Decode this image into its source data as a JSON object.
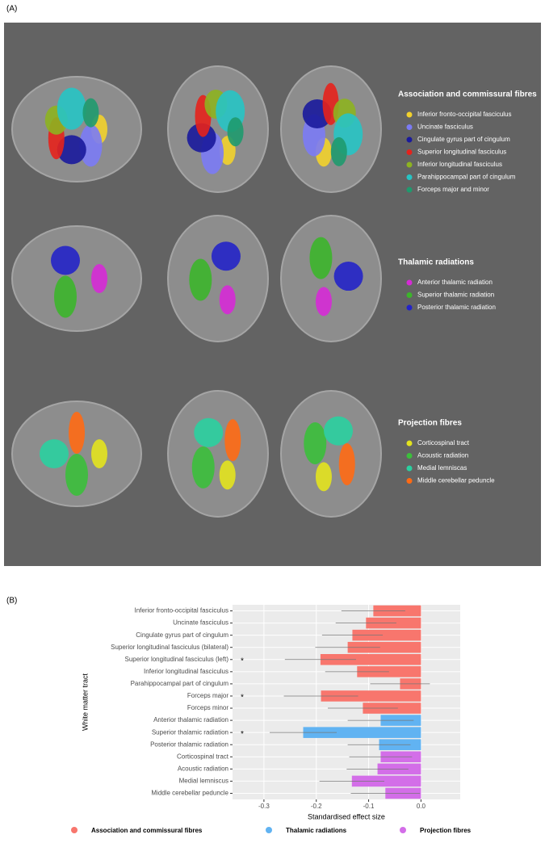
{
  "panel_a": {
    "label": "(A)",
    "groups": [
      {
        "title": "Association and commissural fibres",
        "items": [
          {
            "name": "Inferior fronto-occipital fasciculus",
            "color": "#f2d12c"
          },
          {
            "name": "Uncinate fasciculus",
            "color": "#7b7bf5"
          },
          {
            "name": "Cingulate gyrus part of cingulum",
            "color": "#1a1a9c"
          },
          {
            "name": "Superior longitudinal fasciculus",
            "color": "#e5221c"
          },
          {
            "name": "Inferior longitudinal fasciculus",
            "color": "#8db320"
          },
          {
            "name": "Parahippocampal part of cingulum",
            "color": "#27c4c4"
          },
          {
            "name": "Forceps major and minor",
            "color": "#1f9a6e"
          }
        ]
      },
      {
        "title": "Thalamic radiations",
        "items": [
          {
            "name": "Anterior thalamic radiation",
            "color": "#d62ad6"
          },
          {
            "name": "Superior thalamic radiation",
            "color": "#3cb52b"
          },
          {
            "name": "Posterior thalamic radiation",
            "color": "#2323c8"
          }
        ]
      },
      {
        "title": "Projection fibres",
        "items": [
          {
            "name": "Corticospinal tract",
            "color": "#e3e31e"
          },
          {
            "name": "Acoustic radiation",
            "color": "#3bbf3b"
          },
          {
            "name": "Medial lemniscas",
            "color": "#2ad0a0"
          },
          {
            "name": "Middle cerebellar peduncle",
            "color": "#ff6a14"
          }
        ]
      }
    ]
  },
  "chart_data": {
    "type": "bar",
    "orientation": "horizontal",
    "panel_label": "(B)",
    "x_label": "Standardised effect size",
    "y_label": "White matter tract",
    "categories": [
      "Inferior fronto-occipital fasciculus",
      "Uncinate fasciculus",
      "Cingulate gyrus part of cingulum",
      "Superior longitudinal fasciculus (bilateral)",
      "Superior longitudinal fasciculus (left)",
      "Inferior longitudinal fasciculus",
      "Parahippocampal part of cingulum",
      "Forceps major",
      "Forceps minor",
      "Anterior thalamic radiation",
      "Superior thalamic radiation",
      "Posterior thalamic radiation",
      "Corticospinal tract",
      "Acoustic radiation",
      "Medial lemniscus",
      "Middle cerebellar peduncle"
    ],
    "series": [
      {
        "name": "Association  and commissural fibres",
        "color": "#f8766d",
        "values": [
          -0.091,
          -0.105,
          -0.131,
          -0.14,
          -0.192,
          -0.122,
          -0.04,
          -0.191,
          -0.111,
          null,
          null,
          null,
          null,
          null,
          null,
          null
        ],
        "errors": [
          0.061,
          0.058,
          0.058,
          0.062,
          0.068,
          0.061,
          0.057,
          0.071,
          0.067,
          null,
          null,
          null,
          null,
          null,
          null,
          null
        ]
      },
      {
        "name": "Thalamic  radiations",
        "color": "#61b3f2",
        "values": [
          null,
          null,
          null,
          null,
          null,
          null,
          null,
          null,
          null,
          -0.077,
          -0.225,
          -0.08,
          null,
          null,
          null,
          null
        ],
        "errors": [
          null,
          null,
          null,
          null,
          null,
          null,
          null,
          null,
          null,
          0.063,
          0.064,
          0.06,
          null,
          null,
          null,
          null
        ]
      },
      {
        "name": "Projection fibres",
        "color": "#d36ee8",
        "values": [
          null,
          null,
          null,
          null,
          null,
          null,
          null,
          null,
          null,
          null,
          null,
          null,
          -0.077,
          -0.083,
          -0.132,
          -0.068
        ],
        "errors": [
          null,
          null,
          null,
          null,
          null,
          null,
          null,
          null,
          null,
          null,
          null,
          null,
          0.06,
          0.059,
          0.062,
          0.066
        ]
      }
    ],
    "markers": [
      null,
      null,
      null,
      null,
      "*",
      null,
      null,
      "*",
      null,
      null,
      "*",
      null,
      null,
      null,
      null,
      null
    ],
    "xlim": [
      -0.36,
      0.075
    ],
    "xticks": [
      -0.3,
      -0.2,
      -0.1,
      {
        "value": 0,
        "label": "0.0"
      }
    ],
    "grid": true
  }
}
